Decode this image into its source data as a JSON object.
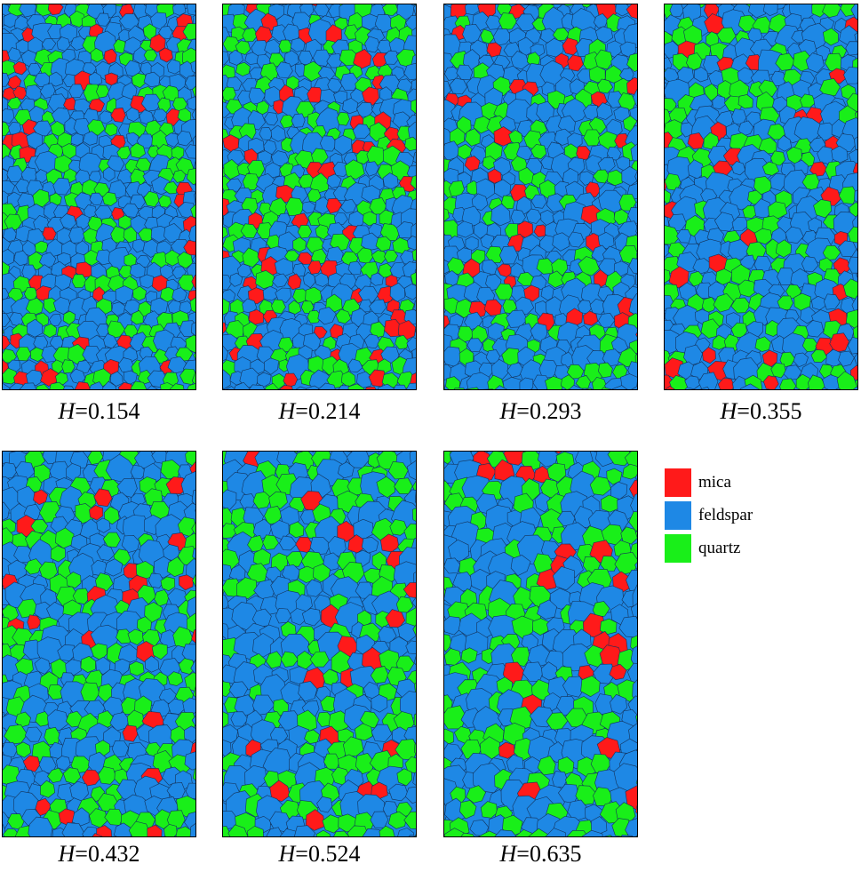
{
  "colors": {
    "mica": "#ff1a1a",
    "feldspar": "#1e88e5",
    "quartz": "#19ef19",
    "boundary": "#14325a"
  },
  "symbol": "H",
  "panels": [
    {
      "h_label": "=0.154",
      "h": 0.154,
      "fractions": {
        "mica": 0.1,
        "feldspar": 0.55,
        "quartz": 0.35
      }
    },
    {
      "h_label": "=0.214",
      "h": 0.214,
      "fractions": {
        "mica": 0.11,
        "feldspar": 0.53,
        "quartz": 0.36
      }
    },
    {
      "h_label": "=0.293",
      "h": 0.293,
      "fractions": {
        "mica": 0.09,
        "feldspar": 0.56,
        "quartz": 0.35
      }
    },
    {
      "h_label": "=0.355",
      "h": 0.355,
      "fractions": {
        "mica": 0.07,
        "feldspar": 0.55,
        "quartz": 0.38
      }
    },
    {
      "h_label": "=0.432",
      "h": 0.432,
      "fractions": {
        "mica": 0.08,
        "feldspar": 0.52,
        "quartz": 0.4
      }
    },
    {
      "h_label": "=0.524",
      "h": 0.524,
      "fractions": {
        "mica": 0.08,
        "feldspar": 0.51,
        "quartz": 0.41
      }
    },
    {
      "h_label": "=0.635",
      "h": 0.635,
      "fractions": {
        "mica": 0.08,
        "feldspar": 0.52,
        "quartz": 0.4
      }
    }
  ],
  "legend": [
    {
      "key": "mica",
      "label": "mica",
      "color": "#ff1a1a"
    },
    {
      "key": "feldspar",
      "label": "feldspar",
      "color": "#1e88e5"
    },
    {
      "key": "quartz",
      "label": "quartz",
      "color": "#19ef19"
    }
  ]
}
